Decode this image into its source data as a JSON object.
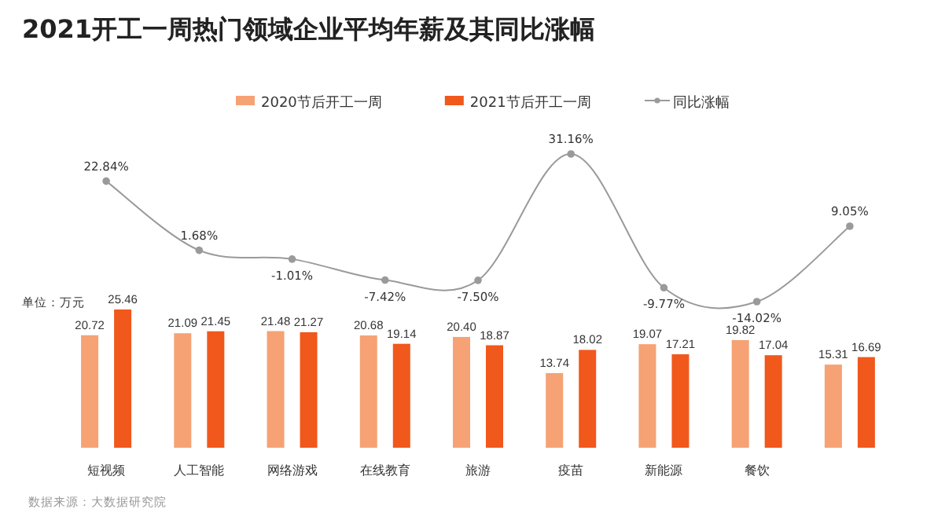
{
  "chart_data": [
    {
      "type": "line",
      "title": "2021开工一周热门领域企业平均年薪及其同比涨幅",
      "categories": [
        null,
        null,
        null,
        null,
        null,
        null,
        null,
        null,
        null
      ],
      "series": [
        {
          "name": "同比涨幅",
          "color": "#9a9a9a",
          "marker": "circle",
          "value_labels": [
            "22.84%",
            "1.68%",
            "-1.01%",
            "-7.42%",
            "-7.50%",
            "31.16%",
            "-9.77%",
            "-14.02%",
            "9.05%"
          ],
          "values": [
            22.84,
            1.68,
            -1.01,
            -7.42,
            -7.5,
            31.16,
            -9.77,
            -14.02,
            9.05
          ]
        }
      ],
      "legend": "top"
    },
    {
      "type": "bar",
      "categories": [
        "短视频",
        "人工智能",
        "网络游戏",
        "在线教育",
        "旅游",
        "疫苗",
        "新能源",
        "餐饮",
        null
      ],
      "series": [
        {
          "name": "2020节后开工一周",
          "color": "#f7a274",
          "value_labels": [
            "20.72",
            "21.09",
            "21.48",
            "20.68",
            "20.40",
            "13.74",
            "19.07",
            "19.82",
            "15.31"
          ],
          "values": [
            20.72,
            21.09,
            21.48,
            20.68,
            20.4,
            13.74,
            19.07,
            19.82,
            15.31
          ]
        },
        {
          "name": "2021节后开工一周",
          "color": "#f0581c",
          "value_labels": [
            "25.46",
            "21.45",
            "21.27",
            "19.14",
            "18.87",
            "18.02",
            "17.21",
            "17.04",
            "16.69"
          ],
          "values": [
            25.46,
            21.45,
            21.27,
            19.14,
            18.87,
            18.02,
            17.21,
            17.04,
            16.69
          ]
        }
      ],
      "legend": "top",
      "annotations": [
        "单位：万元",
        "数据来源：大数据研究院"
      ]
    }
  ]
}
